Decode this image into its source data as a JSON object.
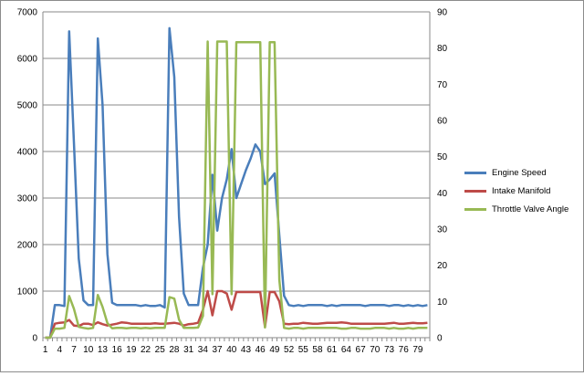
{
  "chart_data": {
    "type": "line",
    "x_tick_labels": [
      "1",
      "4",
      "7",
      "10",
      "13",
      "16",
      "19",
      "22",
      "25",
      "28",
      "31",
      "34",
      "37",
      "40",
      "43",
      "46",
      "49",
      "52",
      "55",
      "58",
      "61",
      "64",
      "67",
      "70",
      "73",
      "76",
      "79"
    ],
    "y_left": {
      "ylim": [
        0,
        7000
      ],
      "ticks": [
        0,
        1000,
        2000,
        3000,
        4000,
        5000,
        6000,
        7000
      ]
    },
    "y_right": {
      "ylim": [
        0,
        90
      ],
      "ticks": [
        0,
        10,
        20,
        30,
        40,
        50,
        60,
        70,
        80,
        90
      ]
    },
    "grid": true,
    "legend_position": "right",
    "series": [
      {
        "name": "Engine Speed",
        "axis": "left",
        "color": "#4a7ebb",
        "values": [
          0,
          0,
          700,
          700,
          680,
          6580,
          4200,
          1700,
          800,
          700,
          700,
          6430,
          5000,
          1800,
          750,
          700,
          700,
          700,
          700,
          700,
          680,
          700,
          680,
          680,
          700,
          650,
          6650,
          5600,
          2600,
          950,
          700,
          700,
          700,
          1500,
          2000,
          3500,
          2300,
          3000,
          3400,
          4050,
          3000,
          3300,
          3600,
          3850,
          4150,
          4000,
          3300,
          3400,
          3530,
          2200,
          900,
          700,
          680,
          700,
          680,
          700,
          700,
          700,
          700,
          680,
          700,
          680,
          700,
          700,
          700,
          700,
          700,
          680,
          700,
          700,
          700,
          700,
          680,
          700,
          700,
          680,
          700,
          680,
          700,
          680,
          700
        ]
      },
      {
        "name": "Intake Manifold",
        "axis": "left",
        "color": "#be4b48",
        "values": [
          0,
          0,
          300,
          320,
          330,
          380,
          260,
          250,
          300,
          300,
          270,
          330,
          290,
          260,
          280,
          300,
          330,
          320,
          300,
          300,
          300,
          300,
          300,
          310,
          300,
          300,
          310,
          320,
          300,
          260,
          290,
          300,
          320,
          600,
          1000,
          480,
          1000,
          1000,
          950,
          600,
          980,
          980,
          980,
          980,
          980,
          980,
          230,
          980,
          980,
          780,
          300,
          290,
          300,
          300,
          320,
          310,
          300,
          300,
          310,
          320,
          320,
          320,
          330,
          320,
          300,
          300,
          300,
          300,
          300,
          300,
          300,
          300,
          310,
          320,
          300,
          300,
          310,
          320,
          310,
          310,
          320
        ]
      },
      {
        "name": "Throttle Valve Angle",
        "axis": "right",
        "color": "#98b954",
        "values": [
          0,
          0,
          2.5,
          2.5,
          2.7,
          11.5,
          8,
          3,
          2.7,
          2.5,
          2.7,
          11.8,
          8.5,
          4,
          2.6,
          2.7,
          2.7,
          2.6,
          2.7,
          2.7,
          2.6,
          2.7,
          2.6,
          2.7,
          2.7,
          2.7,
          11.2,
          10.8,
          5,
          2.7,
          2.7,
          2.7,
          2.8,
          6,
          81.8,
          12,
          81.8,
          81.8,
          81.8,
          12,
          81.6,
          81.6,
          81.6,
          81.6,
          81.6,
          81.6,
          2.8,
          81.6,
          81.6,
          16,
          2.7,
          2.5,
          2.7,
          2.7,
          2.5,
          2.7,
          2.7,
          2.7,
          2.7,
          2.7,
          2.7,
          2.7,
          2.5,
          2.5,
          2.7,
          2.7,
          2.5,
          2.5,
          2.5,
          2.7,
          2.7,
          2.7,
          2.5,
          2.7,
          2.5,
          2.5,
          2.7,
          2.5,
          2.7,
          2.7,
          2.7
        ]
      }
    ]
  }
}
